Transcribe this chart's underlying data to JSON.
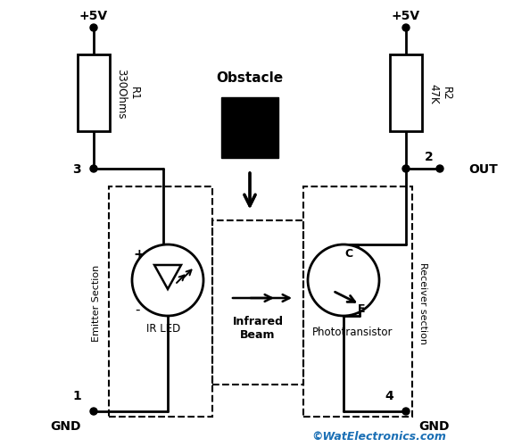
{
  "background_color": "#ffffff",
  "line_color": "#000000",
  "watermark_color": "#1a6fb5",
  "watermark": "©WatElectronics.com",
  "vcc_left": "+5V",
  "vcc_right": "+5V",
  "r1_label": "R1\n330Ohms",
  "r2_label": "R2\n47K",
  "gnd_left": "GND",
  "gnd_right": "GND",
  "node1": "1",
  "node2": "2",
  "node3": "3",
  "node4": "4",
  "out": "OUT",
  "ir_led": "IR LED",
  "infrared_beam": "Infrared\nBeam",
  "phototransistor": "Phototransistor",
  "obstacle": "Obstacle",
  "emitter_section": "Emitter Section",
  "receiver_section": "Receiver section",
  "plus": "+",
  "minus": "-",
  "collector": "C",
  "emitter_e": "E"
}
